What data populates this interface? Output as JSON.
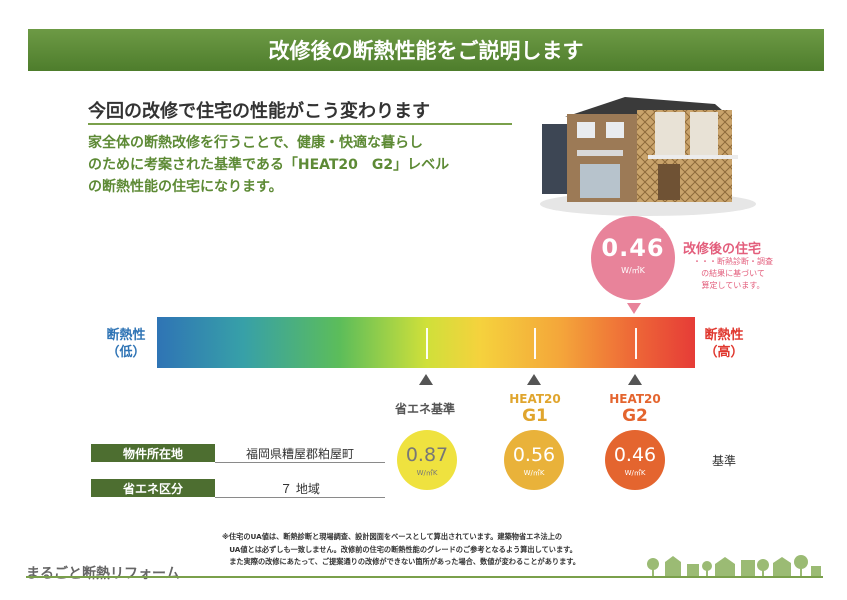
{
  "banner": {
    "title": "改修後の断熱性能をご説明します"
  },
  "intro": {
    "heading": "今回の改修で住宅の性能がこう変わります",
    "lines": [
      "家全体の断熱改修を行うことで、健康・快適な暮らし",
      "のために考案された基準である「HEAT20　G2」レベル",
      "の断熱性能の住宅になります。"
    ]
  },
  "after": {
    "value": "0.46",
    "unit": "W/㎡K",
    "mark": "※",
    "title": "改修後の住宅",
    "note_lines": [
      "・・・断熱診断・調査",
      "の結果に基づいて",
      "算定しています。"
    ]
  },
  "scale": {
    "low_lines": [
      "断熱性",
      "（低）"
    ],
    "high_lines": [
      "断熱性",
      "（高）"
    ]
  },
  "levels": [
    {
      "label_top": "",
      "label_bottom": "省エネ基準",
      "value": "0.87",
      "unit": "W/㎡K",
      "color": "#efe23f",
      "label_color": "#555555"
    },
    {
      "label_top": "HEAT20",
      "label_bottom": "G1",
      "value": "0.56",
      "unit": "W/㎡K",
      "color": "#e9b23a",
      "label_color": "#e0a52e"
    },
    {
      "label_top": "HEAT20",
      "label_bottom": "G2",
      "value": "0.46",
      "unit": "W/㎡K",
      "color": "#e4652f",
      "label_color": "#e4652f"
    }
  ],
  "standard_label": "基準",
  "property": [
    {
      "label": "物件所在地",
      "value": "福岡県糟屋郡粕屋町"
    },
    {
      "label": "省エネ区分",
      "value": "７ 地域"
    }
  ],
  "footnote": [
    "※住宅のUA値は、断熱診断と現場調査、設計図面をベースとして算出されています。建築物省エネ法上の",
    "　UA値とは必ずしも一致しません。改修前の住宅の断熱性能のグレードのご参考となるよう算出しています。",
    "　また実際の改修にあたって、ご提案通りの改修ができない箇所があった場合、数値が変わることがあります。"
  ],
  "brand": "まるごと断熱リフォーム",
  "colors": {
    "accent_green": "#5d8a35",
    "pink": "#e8839a",
    "label_dark_green": "#4d6e30"
  }
}
